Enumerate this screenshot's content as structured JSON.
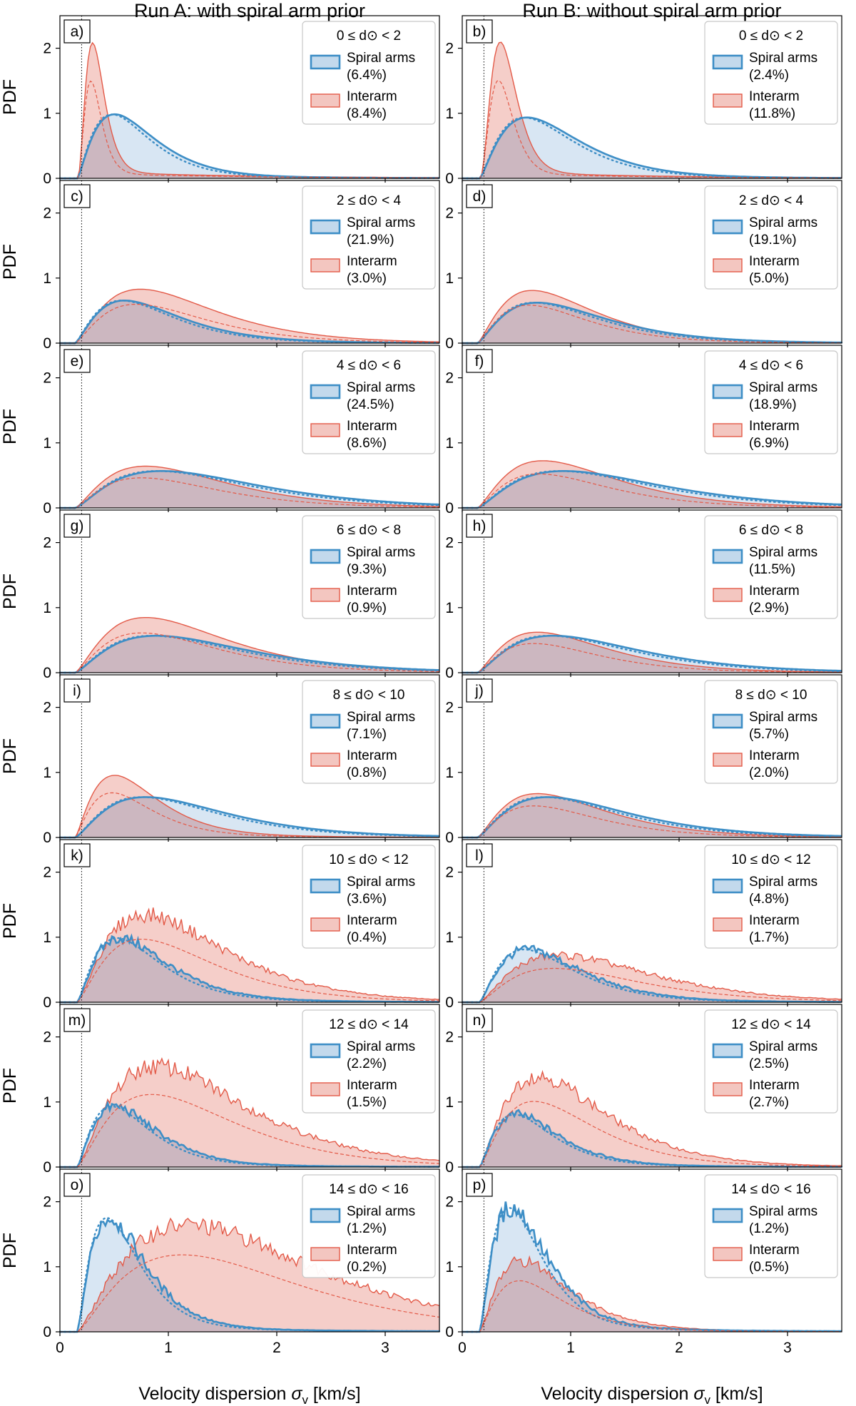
{
  "figure": {
    "column_titles": [
      "Run A: with spiral arm prior",
      "Run B: without spiral arm prior"
    ],
    "xlabel_text": "Velocity dispersion ",
    "xlabel_symbol": "σ",
    "xlabel_sub": "v",
    "xlabel_units": " [km/s]",
    "ylabel": "PDF",
    "xticks": [
      "0",
      "1",
      "2",
      "3"
    ],
    "yticks": [
      "0",
      "1",
      "2"
    ],
    "legend_spiral": "Spiral arms",
    "legend_interarm": "Interarm",
    "colors": {
      "spiral_line": "#3d8ec6",
      "spiral_fill": "#c3d9ec",
      "interarm_line": "#e35a48",
      "interarm_fill": "#f3c6c0",
      "overlap_fill": "#cbb4bc"
    }
  },
  "chart_data": [
    {
      "panel": "a)",
      "type": "area",
      "distance_bin": "0 ≤ d⊙ < 2",
      "spiral_pct": "(6.4%)",
      "interarm_pct": "(8.4%)",
      "xlim": [
        0,
        3.5
      ],
      "ylim": [
        0,
        2.5
      ],
      "vline_x": 0.2,
      "peaks": {
        "spiral": [
          0.5,
          0.95
        ],
        "interarm": [
          0.3,
          2.05
        ]
      }
    },
    {
      "panel": "b)",
      "type": "area",
      "distance_bin": "0 ≤ d⊙ < 2",
      "spiral_pct": "(2.4%)",
      "interarm_pct": "(11.8%)",
      "xlim": [
        0,
        3.5
      ],
      "ylim": [
        0,
        2.5
      ],
      "vline_x": 0.2,
      "peaks": {
        "spiral": [
          0.6,
          0.9
        ],
        "interarm": [
          0.35,
          2.05
        ]
      }
    },
    {
      "panel": "c)",
      "type": "area",
      "distance_bin": "2 ≤ d⊙ < 4",
      "spiral_pct": "(21.9%)",
      "interarm_pct": "(3.0%)",
      "xlim": [
        0,
        3.5
      ],
      "ylim": [
        0,
        2.5
      ],
      "vline_x": 0.2,
      "peaks": {
        "spiral": [
          0.6,
          0.63
        ],
        "interarm": [
          0.75,
          0.8
        ]
      }
    },
    {
      "panel": "d)",
      "type": "area",
      "distance_bin": "2 ≤ d⊙ < 4",
      "spiral_pct": "(19.1%)",
      "interarm_pct": "(5.0%)",
      "xlim": [
        0,
        3.5
      ],
      "ylim": [
        0,
        2.5
      ],
      "vline_x": 0.2,
      "peaks": {
        "spiral": [
          0.7,
          0.6
        ],
        "interarm": [
          0.65,
          0.78
        ]
      }
    },
    {
      "panel": "e)",
      "type": "area",
      "distance_bin": "4 ≤ d⊙ < 6",
      "spiral_pct": "(24.5%)",
      "interarm_pct": "(8.6%)",
      "xlim": [
        0,
        3.5
      ],
      "ylim": [
        0,
        2.5
      ],
      "vline_x": 0.2,
      "peaks": {
        "spiral": [
          0.95,
          0.55
        ],
        "interarm": [
          0.8,
          0.62
        ]
      }
    },
    {
      "panel": "f)",
      "type": "area",
      "distance_bin": "4 ≤ d⊙ < 6",
      "spiral_pct": "(18.9%)",
      "interarm_pct": "(6.9%)",
      "xlim": [
        0,
        3.5
      ],
      "ylim": [
        0,
        2.5
      ],
      "vline_x": 0.2,
      "peaks": {
        "spiral": [
          0.95,
          0.55
        ],
        "interarm": [
          0.75,
          0.7
        ]
      }
    },
    {
      "panel": "g)",
      "type": "area",
      "distance_bin": "6 ≤ d⊙ < 8",
      "spiral_pct": "(9.3%)",
      "interarm_pct": "(0.9%)",
      "xlim": [
        0,
        3.5
      ],
      "ylim": [
        0,
        2.5
      ],
      "vline_x": 0.2,
      "peaks": {
        "spiral": [
          0.9,
          0.55
        ],
        "interarm": [
          0.8,
          0.82
        ]
      }
    },
    {
      "panel": "h)",
      "type": "area",
      "distance_bin": "6 ≤ d⊙ < 8",
      "spiral_pct": "(11.5%)",
      "interarm_pct": "(2.9%)",
      "xlim": [
        0,
        3.5
      ],
      "ylim": [
        0,
        2.5
      ],
      "vline_x": 0.2,
      "peaks": {
        "spiral": [
          0.85,
          0.55
        ],
        "interarm": [
          0.7,
          0.6
        ]
      }
    },
    {
      "panel": "i)",
      "type": "area",
      "distance_bin": "8 ≤ d⊙ < 10",
      "spiral_pct": "(7.1%)",
      "interarm_pct": "(0.8%)",
      "xlim": [
        0,
        3.5
      ],
      "ylim": [
        0,
        2.5
      ],
      "vline_x": 0.2,
      "peaks": {
        "spiral": [
          0.8,
          0.6
        ],
        "interarm": [
          0.5,
          0.92
        ]
      }
    },
    {
      "panel": "j)",
      "type": "area",
      "distance_bin": "8 ≤ d⊙ < 10",
      "spiral_pct": "(5.7%)",
      "interarm_pct": "(2.0%)",
      "xlim": [
        0,
        3.5
      ],
      "ylim": [
        0,
        2.5
      ],
      "vline_x": 0.2,
      "peaks": {
        "spiral": [
          0.8,
          0.6
        ],
        "interarm": [
          0.7,
          0.65
        ]
      }
    },
    {
      "panel": "k)",
      "type": "area",
      "distance_bin": "10 ≤ d⊙ < 12",
      "spiral_pct": "(3.6%)",
      "interarm_pct": "(0.4%)",
      "xlim": [
        0,
        3.5
      ],
      "ylim": [
        0,
        2.5
      ],
      "vline_x": 0.2,
      "peaks": {
        "spiral": [
          0.55,
          0.95
        ],
        "interarm": [
          0.8,
          1.3
        ]
      }
    },
    {
      "panel": "l)",
      "type": "area",
      "distance_bin": "10 ≤ d⊙ < 12",
      "spiral_pct": "(4.8%)",
      "interarm_pct": "(1.7%)",
      "xlim": [
        0,
        3.5
      ],
      "ylim": [
        0,
        2.5
      ],
      "vline_x": 0.2,
      "peaks": {
        "spiral": [
          0.6,
          0.78
        ],
        "interarm": [
          0.9,
          0.7
        ]
      }
    },
    {
      "panel": "m)",
      "type": "area",
      "distance_bin": "12 ≤ d⊙ < 14",
      "spiral_pct": "(2.2%)",
      "interarm_pct": "(1.5%)",
      "xlim": [
        0,
        3.5
      ],
      "ylim": [
        0,
        2.5
      ],
      "vline_x": 0.2,
      "peaks": {
        "spiral": [
          0.5,
          0.9
        ],
        "interarm": [
          0.9,
          1.5
        ]
      }
    },
    {
      "panel": "n)",
      "type": "area",
      "distance_bin": "12 ≤ d⊙ < 14",
      "spiral_pct": "(2.5%)",
      "interarm_pct": "(2.7%)",
      "xlim": [
        0,
        3.5
      ],
      "ylim": [
        0,
        2.5
      ],
      "vline_x": 0.2,
      "peaks": {
        "spiral": [
          0.5,
          0.78
        ],
        "interarm": [
          0.7,
          1.35
        ]
      }
    },
    {
      "panel": "o)",
      "type": "area",
      "distance_bin": "14 ≤ d⊙ < 16",
      "spiral_pct": "(1.2%)",
      "interarm_pct": "(0.2%)",
      "xlim": [
        0,
        3.5
      ],
      "ylim": [
        0,
        2.5
      ],
      "vline_x": 0.2,
      "peaks": {
        "spiral": [
          0.45,
          1.7
        ],
        "interarm": [
          1.2,
          1.6
        ]
      }
    },
    {
      "panel": "p)",
      "type": "area",
      "distance_bin": "14 ≤ d⊙ < 16",
      "spiral_pct": "(1.2%)",
      "interarm_pct": "(0.5%)",
      "xlim": [
        0,
        3.5
      ],
      "ylim": [
        0,
        2.5
      ],
      "vline_x": 0.2,
      "peaks": {
        "spiral": [
          0.45,
          1.85
        ],
        "interarm": [
          0.55,
          1.05
        ]
      }
    }
  ]
}
